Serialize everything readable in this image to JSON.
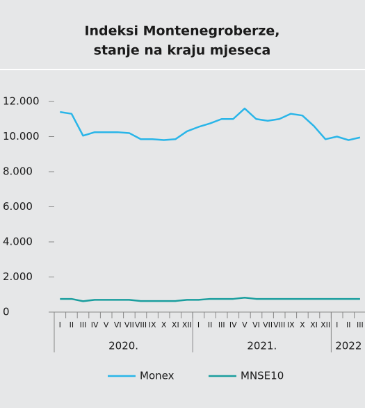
{
  "chart_data": {
    "type": "line",
    "title": [
      "Indeksi Montenegroberze,",
      "stanje na kraju mjeseca"
    ],
    "categories": [
      "I",
      "II",
      "III",
      "IV",
      "V",
      "VI",
      "VII",
      "VIII",
      "IX",
      "X",
      "XI",
      "XII",
      "I",
      "II",
      "III",
      "IV",
      "V",
      "VI",
      "VII",
      "VIII",
      "IX",
      "X",
      "XI",
      "XII",
      "I",
      "II",
      "III"
    ],
    "years": [
      "2020.",
      "2021.",
      "2022"
    ],
    "series": [
      {
        "name": "Monex",
        "color": "#29b5e8",
        "values": [
          11400,
          11300,
          10050,
          10250,
          10250,
          10250,
          10200,
          9850,
          9850,
          9800,
          9850,
          10300,
          10550,
          10750,
          11000,
          11000,
          11600,
          11000,
          10900,
          11000,
          11300,
          11200,
          10600,
          9850,
          10000,
          9800,
          9950
        ]
      },
      {
        "name": "MNSE10",
        "color": "#1a9e9e",
        "values": [
          750,
          750,
          620,
          700,
          700,
          700,
          700,
          630,
          630,
          630,
          630,
          700,
          700,
          750,
          750,
          750,
          820,
          750,
          750,
          750,
          750,
          750,
          750,
          750,
          750,
          750,
          750
        ]
      }
    ],
    "ylim": [
      0,
      12000
    ],
    "yticks": [
      0,
      {
        "value": 2000,
        "label": "2.000"
      },
      {
        "value": 4000,
        "label": "4.000"
      },
      {
        "value": 6000,
        "label": "6.000"
      },
      {
        "value": 8000,
        "label": "8.000"
      },
      {
        "value": 10000,
        "label": "10.000"
      },
      {
        "value": 12000,
        "label": "12.000"
      }
    ],
    "grid": false
  }
}
